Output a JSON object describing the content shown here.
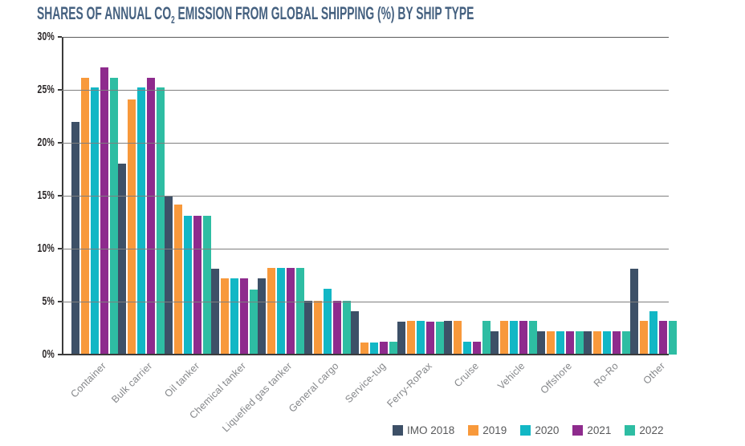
{
  "title": {
    "prefix": "SHARES OF ANNUAL CO",
    "subscript": "2",
    "suffix": " EMISSION FROM GLOBAL SHIPPING (%) BY SHIP TYPE"
  },
  "colors": {
    "title": "#456180",
    "axis": "#3b3b3b",
    "gridline": "#7f7f7f",
    "y_tick_text": "#2a2627",
    "x_label_text": "#85878a",
    "legend_text": "#57585a"
  },
  "chart_data": {
    "type": "bar",
    "title": "Shares of annual CO2 emission from global shipping (%) by ship type",
    "xlabel": "",
    "ylabel": "",
    "ylim": [
      0,
      30
    ],
    "grid": "horizontal",
    "legend_position": "bottom-right",
    "y_ticks": {
      "values": [
        0,
        5,
        10,
        15,
        20,
        25,
        30
      ],
      "labels": [
        "0%",
        "5%",
        "10%",
        "15%",
        "20%",
        "25%",
        "30%"
      ]
    },
    "categories": [
      "Container",
      "Bulk carrier",
      "Oil tanker",
      "Chemical tanker",
      "Liquefied gas tanker",
      "General cargo",
      "Service-tug",
      "Ferry-RoPax",
      "Cruise",
      "Vehicle",
      "Offshore",
      "Ro-Ro",
      "Other"
    ],
    "series": [
      {
        "name": "IMO 2018",
        "color": "#3d5067",
        "values": [
          22.0,
          18.0,
          15.0,
          8.1,
          7.2,
          5.1,
          4.1,
          3.1,
          3.2,
          2.2,
          2.2,
          2.2,
          8.1
        ]
      },
      {
        "name": "2019",
        "color": "#f8993b",
        "values": [
          26.1,
          24.1,
          14.2,
          7.2,
          8.2,
          5.1,
          1.1,
          3.2,
          3.2,
          3.2,
          2.2,
          2.2,
          3.2
        ]
      },
      {
        "name": "2020",
        "color": "#12b7c5",
        "values": [
          25.2,
          25.2,
          13.1,
          7.2,
          8.2,
          6.2,
          1.1,
          3.2,
          1.2,
          3.2,
          2.2,
          2.2,
          4.1
        ]
      },
      {
        "name": "2021",
        "color": "#8e2b8d",
        "values": [
          27.1,
          26.1,
          13.1,
          7.2,
          8.2,
          5.1,
          1.2,
          3.1,
          1.2,
          3.2,
          2.2,
          2.2,
          3.2
        ]
      },
      {
        "name": "2022",
        "color": "#2ebda3",
        "values": [
          26.1,
          25.2,
          13.1,
          6.1,
          8.2,
          5.1,
          1.2,
          3.1,
          3.2,
          3.2,
          2.2,
          2.2,
          3.2
        ]
      }
    ]
  }
}
